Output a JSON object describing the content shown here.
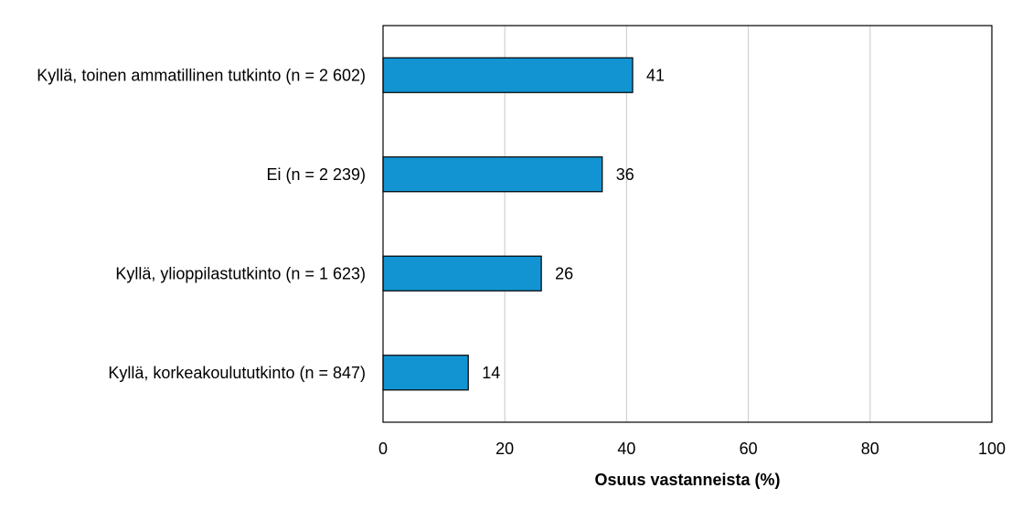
{
  "chart_data": {
    "type": "bar",
    "orientation": "horizontal",
    "categories": [
      "Kyllä, toinen ammatillinen tutkinto (n = 2 602)",
      "Ei (n = 2 239)",
      "Kyllä, ylioppilastutkinto (n = 1 623)",
      "Kyllä, korkeakoulututkinto (n = 847)"
    ],
    "values": [
      41,
      36,
      26,
      14
    ],
    "data_labels": [
      "41",
      "36",
      "26",
      "14"
    ],
    "xlabel": "Osuus vastanneista (%)",
    "ylabel": "",
    "xlim": [
      0,
      100
    ],
    "xticks": [
      0,
      20,
      40,
      60,
      80,
      100
    ],
    "xtick_labels": [
      "0",
      "20",
      "40",
      "60",
      "80",
      "100"
    ],
    "grid": "vertical",
    "legend": "none",
    "colors": {
      "bar": "#1394d2",
      "bar_border": "#000000",
      "grid": "#d0d0d0"
    }
  }
}
